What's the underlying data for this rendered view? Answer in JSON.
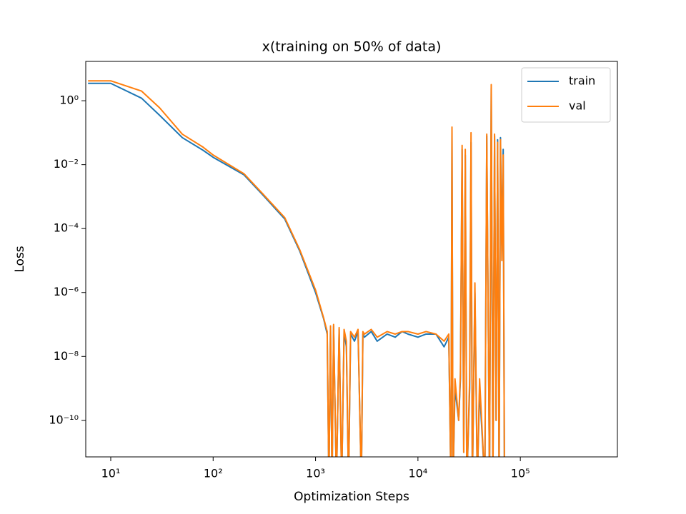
{
  "chart_data": {
    "type": "line",
    "title": "x(training on 50% of data)",
    "xlabel": "Optimization Steps",
    "ylabel": "Loss",
    "xscale": "log",
    "yscale": "log",
    "legend": "upper right",
    "x": [
      6,
      10,
      20,
      30,
      50,
      80,
      100,
      200,
      300,
      500,
      700,
      1000,
      1200,
      1300,
      1350,
      1400,
      1450,
      1500,
      1600,
      1700,
      1800,
      1900,
      2000,
      2100,
      2200,
      2400,
      2600,
      2800,
      2900,
      3000,
      3500,
      4000,
      5000,
      6000,
      7000,
      8000,
      10000,
      12000,
      15000,
      18000,
      20000,
      21000,
      21500,
      22000,
      23000,
      25000,
      26000,
      27000,
      28000,
      29000,
      30000,
      32000,
      33000,
      34000,
      36000,
      38000,
      40000,
      45000,
      47000,
      50000,
      52000,
      54000,
      56000,
      58000,
      60000,
      62000,
      64000,
      66000,
      68000,
      70000
    ],
    "series": [
      {
        "name": "train",
        "color": "#1f77b4",
        "values": [
          3.5,
          3.5,
          1.2,
          0.35,
          0.07,
          0.028,
          0.017,
          0.0048,
          0.0012,
          0.0002,
          2e-05,
          1e-06,
          1.5e-07,
          5e-08,
          1e-12,
          8e-08,
          1e-12,
          9e-08,
          1e-12,
          7e-08,
          1e-12,
          6e-08,
          2e-08,
          1e-12,
          5e-08,
          3e-08,
          6e-08,
          1e-12,
          5e-08,
          4e-08,
          6e-08,
          3e-08,
          5e-08,
          4e-08,
          6e-08,
          5e-08,
          4e-08,
          5e-08,
          5e-08,
          2e-08,
          4e-08,
          1e-12,
          0.12,
          1e-12,
          1e-09,
          1e-10,
          2e-09,
          0.03,
          1e-11,
          0.02,
          1e-12,
          1e-09,
          0.05,
          1e-12,
          1e-06,
          1e-12,
          1e-09,
          1e-12,
          0.08,
          1e-12,
          2.5,
          1e-12,
          0.08,
          1e-10,
          0.06,
          1e-12,
          0.07,
          3e-05,
          0.03,
          1e-12
        ]
      },
      {
        "name": "val",
        "color": "#ff7f0e",
        "values": [
          4.2,
          4.2,
          2.0,
          0.6,
          0.09,
          0.035,
          0.02,
          0.0052,
          0.0013,
          0.00022,
          2.2e-05,
          1.2e-06,
          1.6e-07,
          6e-08,
          1e-12,
          9e-08,
          1e-12,
          1e-07,
          1e-12,
          8e-08,
          1e-12,
          7e-08,
          3e-08,
          1e-12,
          6e-08,
          4e-08,
          7e-08,
          1e-12,
          6e-08,
          5e-08,
          7e-08,
          4e-08,
          6e-08,
          5e-08,
          6e-08,
          6e-08,
          5e-08,
          6e-08,
          5e-08,
          3e-08,
          5e-08,
          1e-12,
          0.15,
          1e-12,
          2e-09,
          1e-10,
          3e-09,
          0.04,
          1e-11,
          0.03,
          1e-12,
          2e-09,
          0.1,
          1e-12,
          2e-06,
          1e-12,
          2e-09,
          1e-12,
          0.09,
          1e-12,
          3.2,
          1e-12,
          0.09,
          1e-10,
          0.05,
          1e-12,
          0.06,
          1e-05,
          0.02,
          1e-12
        ]
      }
    ],
    "xlim": [
      5.7,
      887000
    ],
    "xticks": [
      {
        "value": 10,
        "label": "10¹"
      },
      {
        "value": 100,
        "label": "10²"
      },
      {
        "value": 1000,
        "label": "10³"
      },
      {
        "value": 10000,
        "label": "10⁴"
      },
      {
        "value": 100000,
        "label": "10⁵"
      }
    ],
    "ylim": [
      7.2e-12,
      17
    ],
    "yticks": [
      {
        "value": 1,
        "label": "10⁰"
      },
      {
        "value": 0.01,
        "label": "10⁻²"
      },
      {
        "value": 0.0001,
        "label": "10⁻⁴"
      },
      {
        "value": 1e-06,
        "label": "10⁻⁶"
      },
      {
        "value": 1e-08,
        "label": "10⁻⁸"
      },
      {
        "value": 1e-10,
        "label": "10⁻¹⁰"
      }
    ]
  }
}
